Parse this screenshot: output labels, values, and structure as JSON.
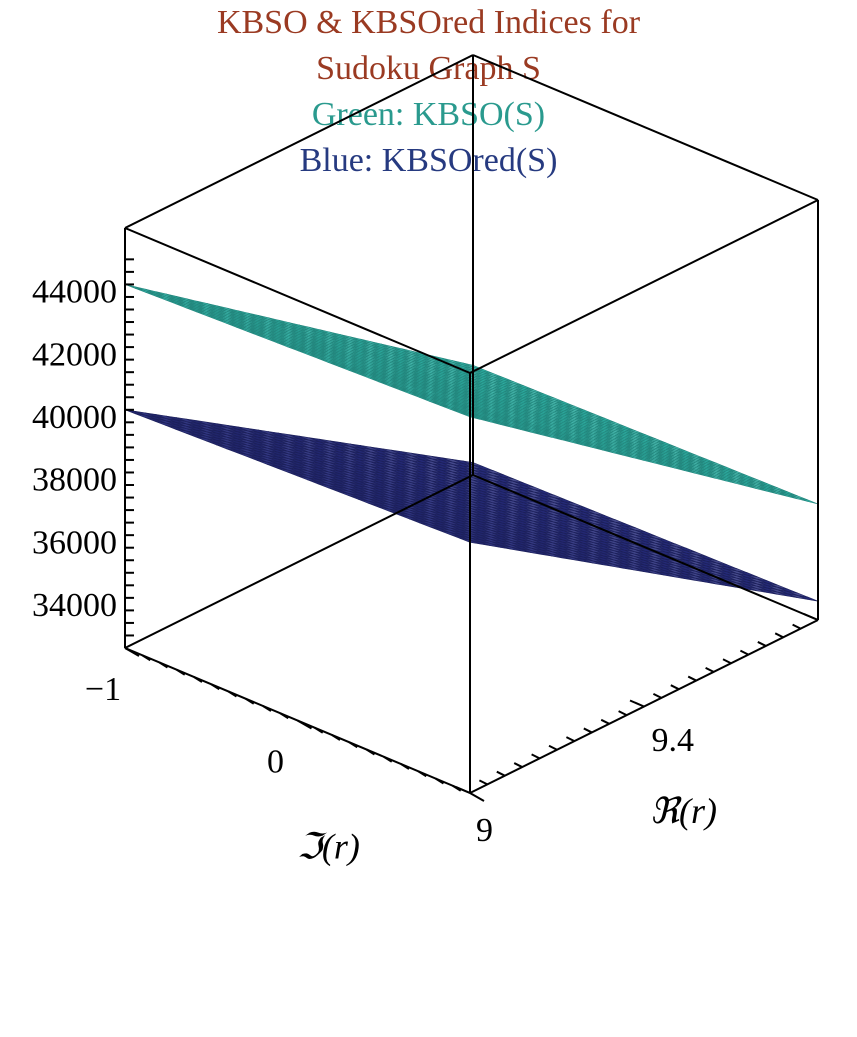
{
  "titles": {
    "line1": "KBSO & KBSOred Indices for",
    "line2": "Sudoku Graph S",
    "line3": "Green: KBSO(S)",
    "line4": "Blue: KBSOred(S)"
  },
  "colors": {
    "title": "#9a3a22",
    "green_label": "#2a9a8e",
    "blue_label": "#263a80",
    "green_surface": "#2fb3a6",
    "blue_surface": "#252a78",
    "axes": "#000000"
  },
  "chart_data": {
    "type": "surface",
    "title": "KBSO & KBSOred Indices for Sudoku Graph S",
    "subtitles": [
      "Green: KBSO(S)",
      "Blue: KBSOred(S)"
    ],
    "xlabel": "ℑ(r)",
    "ylabel": "ℜ(r)",
    "zlabel": "",
    "x_ticks": [
      "−1",
      "0"
    ],
    "y_ticks": [
      "9",
      "9.4"
    ],
    "z_ticks": [
      "34000",
      "36000",
      "38000",
      "40000",
      "42000",
      "44000"
    ],
    "xlim": [
      -1,
      1
    ],
    "ylim": [
      9,
      10
    ],
    "zlim": [
      32600,
      46000
    ],
    "series": [
      {
        "name": "KBSO(S)",
        "color": "#2fb3a6",
        "corners": [
          {
            "x": -1,
            "y": 10,
            "z": 44600
          },
          {
            "x": 1,
            "y": 10,
            "z": 44200
          },
          {
            "x": 1,
            "y": 9,
            "z": 36100
          },
          {
            "x": -1,
            "y": 9,
            "z": 36300
          }
        ]
      },
      {
        "name": "KBSOred(S)",
        "color": "#252a78",
        "corners": [
          {
            "x": -1,
            "y": 10,
            "z": 40600
          },
          {
            "x": 1,
            "y": 10,
            "z": 40200
          },
          {
            "x": 1,
            "y": 9,
            "z": 33000
          },
          {
            "x": -1,
            "y": 9,
            "z": 33200
          }
        ]
      }
    ]
  }
}
